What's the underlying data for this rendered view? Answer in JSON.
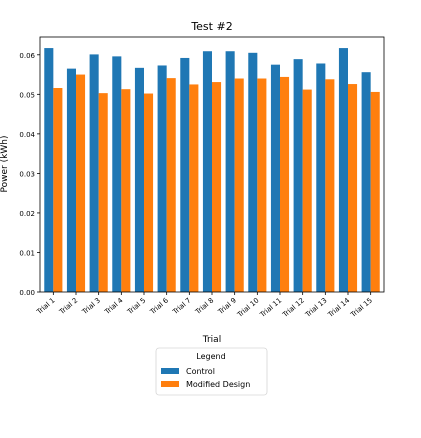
{
  "chart_data": {
    "type": "bar",
    "title": "Test #2",
    "xlabel": "Trial",
    "ylabel": "Power (kWh)",
    "ylim": [
      0,
      0.0645
    ],
    "yticks": [
      "0.00",
      "0.01",
      "0.02",
      "0.03",
      "0.04",
      "0.05",
      "0.06"
    ],
    "ytick_values": [
      0,
      0.01,
      0.02,
      0.03,
      0.04,
      0.05,
      0.06
    ],
    "categories": [
      "Trial 1",
      "Trial 2",
      "Trial 3",
      "Trial 4",
      "Trial 5",
      "Trial 6",
      "Trial 7",
      "Trial 8",
      "Trial 9",
      "Trial 10",
      "Trial 11",
      "Trial 12",
      "Trial 13",
      "Trial 14",
      "Trial 15"
    ],
    "grid": false,
    "legend": {
      "title": "Legend",
      "placement": "below"
    },
    "series": [
      {
        "name": "Control",
        "color": "#1f77b4",
        "values": [
          0.0617,
          0.0565,
          0.0601,
          0.0596,
          0.0567,
          0.0573,
          0.0592,
          0.0609,
          0.0609,
          0.0605,
          0.0575,
          0.0589,
          0.0578,
          0.0617,
          0.0556
        ]
      },
      {
        "name": "Modified Design",
        "color": "#ff7f0e",
        "values": [
          0.0516,
          0.055,
          0.0503,
          0.0513,
          0.0502,
          0.0541,
          0.0525,
          0.0531,
          0.054,
          0.054,
          0.0544,
          0.0512,
          0.0538,
          0.0526,
          0.0506
        ]
      }
    ]
  }
}
